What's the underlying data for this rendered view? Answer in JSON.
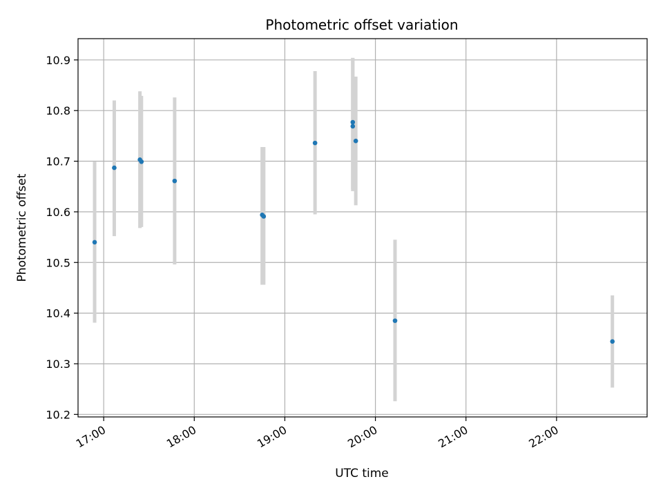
{
  "chart_data": {
    "type": "scatter",
    "title": "Photometric offset variation",
    "xlabel": "UTC time",
    "ylabel": "Photometric offset",
    "x_axis": {
      "kind": "time",
      "range": [
        "16:43",
        "23:00"
      ],
      "ticks": [
        "17:00",
        "18:00",
        "19:00",
        "20:00",
        "21:00",
        "22:00"
      ]
    },
    "y_axis": {
      "range": [
        10.195,
        10.942
      ],
      "ticks": [
        "10.2",
        "10.3",
        "10.4",
        "10.5",
        "10.6",
        "10.7",
        "10.8",
        "10.9"
      ]
    },
    "grid": true,
    "legend": "none",
    "colors": {
      "points": "#1f77b4",
      "errorbars": "#d3d3d3",
      "grid": "#b0b0b0"
    },
    "series": [
      {
        "points": [
          {
            "x": "16:54",
            "y": 10.54,
            "yerr_low": 10.381,
            "yerr_high": 10.699
          },
          {
            "x": "17:07",
            "y": 10.687,
            "yerr_low": 10.552,
            "yerr_high": 10.82
          },
          {
            "x": "17:24",
            "y": 10.703,
            "yerr_low": 10.568,
            "yerr_high": 10.838
          },
          {
            "x": "17:25",
            "y": 10.699,
            "yerr_low": 10.57,
            "yerr_high": 10.829
          },
          {
            "x": "17:47",
            "y": 10.661,
            "yerr_low": 10.496,
            "yerr_high": 10.826
          },
          {
            "x": "18:45",
            "y": 10.594,
            "yerr_low": 10.456,
            "yerr_high": 10.728
          },
          {
            "x": "18:46",
            "y": 10.591,
            "yerr_low": 10.456,
            "yerr_high": 10.728
          },
          {
            "x": "19:20",
            "y": 10.736,
            "yerr_low": 10.595,
            "yerr_high": 10.878
          },
          {
            "x": "19:45",
            "y": 10.769,
            "yerr_low": 10.641,
            "yerr_high": 10.904
          },
          {
            "x": "19:45",
            "y": 10.777,
            "yerr_low": 10.645,
            "yerr_high": 10.904
          },
          {
            "x": "19:47",
            "y": 10.74,
            "yerr_low": 10.613,
            "yerr_high": 10.867
          },
          {
            "x": "20:13",
            "y": 10.385,
            "yerr_low": 10.226,
            "yerr_high": 10.545
          },
          {
            "x": "22:37",
            "y": 10.344,
            "yerr_low": 10.253,
            "yerr_high": 10.435
          }
        ]
      }
    ]
  }
}
